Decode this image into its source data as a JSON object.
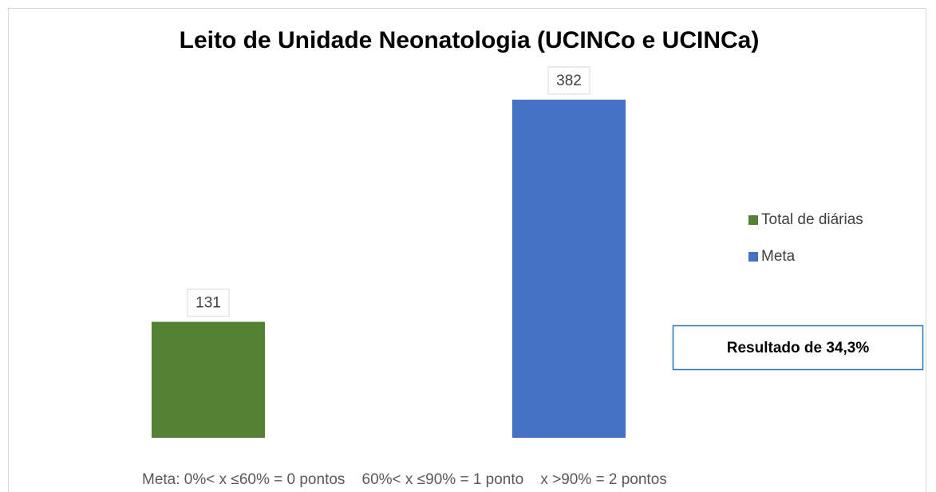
{
  "chart_data": {
    "type": "bar",
    "title": "Leito de Unidade Neonatologia (UCINCo e UCINCa)",
    "categories": [
      null
    ],
    "series": [
      {
        "name": "Total de diárias",
        "color": "#548235",
        "values": [
          131
        ]
      },
      {
        "name": "Meta",
        "color": "#4472c4",
        "values": [
          382
        ]
      }
    ],
    "ylim": [
      0,
      400
    ],
    "legend": "right",
    "annotations": [
      "Resultado de 34,3%",
      "Meta: 0%< x ≤60% = 0 pontos    60%< x ≤90% = 1 ponto    x >90% = 2 pontos"
    ]
  }
}
